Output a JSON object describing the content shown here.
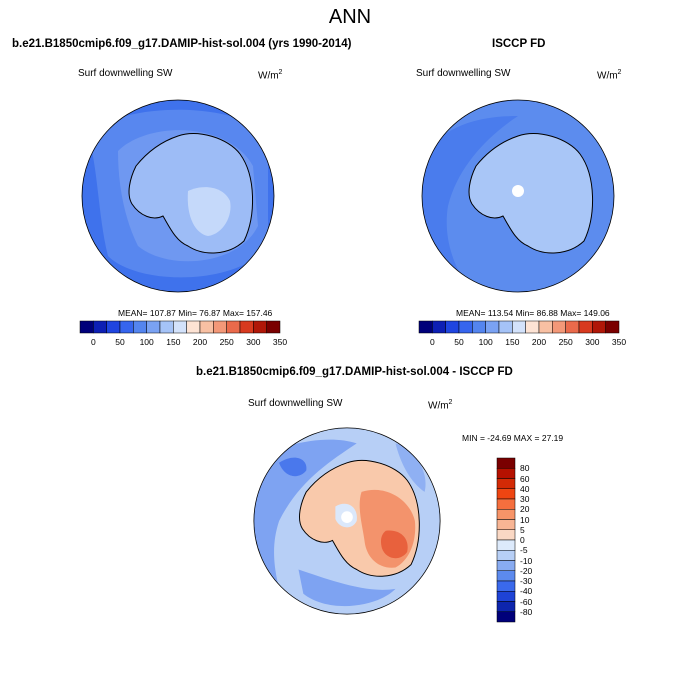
{
  "header": {
    "title": "ANN"
  },
  "panels": {
    "model": {
      "case_title": "b.e21.B1850cmip6.f09_g17.DAMIP-hist-sol.004 (yrs 1990-2014)",
      "variable": "Surf downwelling SW",
      "unit_base": "W/m",
      "unit_exp": "2",
      "stats": "MEAN= 107.87  Min=  76.87  Max= 157.46"
    },
    "obs": {
      "case_title": "ISCCP FD",
      "variable": "Surf downwelling SW",
      "unit_base": "W/m",
      "unit_exp": "2",
      "stats": "MEAN= 113.54  Min=  86.88  Max= 149.06"
    },
    "diff": {
      "case_title": "b.e21.B1850cmip6.f09_g17.DAMIP-hist-sol.004 - ISCCP FD",
      "variable": "Surf downwelling SW",
      "unit_base": "W/m",
      "unit_exp": "2",
      "stats": "MIN = -24.69  MAX =  27.19"
    }
  },
  "colorbar_abs": {
    "labels": [
      "0",
      "50",
      "100",
      "150",
      "200",
      "250",
      "300",
      "350"
    ],
    "colors": [
      "#00007a",
      "#0d1fb4",
      "#1f45e0",
      "#3665ee",
      "#5485ef",
      "#7aa2f3",
      "#a5c3f7",
      "#d3e2fb",
      "#fde3d4",
      "#f8c0a3",
      "#f39878",
      "#ea6a4b",
      "#d83a1f",
      "#b01708",
      "#7a0000"
    ]
  },
  "colorbar_diff": {
    "labels": [
      "80",
      "60",
      "40",
      "30",
      "20",
      "10",
      "5",
      "0",
      "-5",
      "-10",
      "-20",
      "-30",
      "-40",
      "-60",
      "-80"
    ],
    "colors": [
      "#7a0000",
      "#b51100",
      "#d32a06",
      "#ee4512",
      "#f56f3e",
      "#f79468",
      "#f8b594",
      "#fad8c4",
      "#ddeafb",
      "#b7cff6",
      "#88abf1",
      "#5c8aee",
      "#3a69ec",
      "#1e43d6",
      "#0d25ad",
      "#00007a"
    ]
  },
  "colors": {
    "ocean_model": "#4b7ff0",
    "ocean_obs": "#5b8def"
  }
}
